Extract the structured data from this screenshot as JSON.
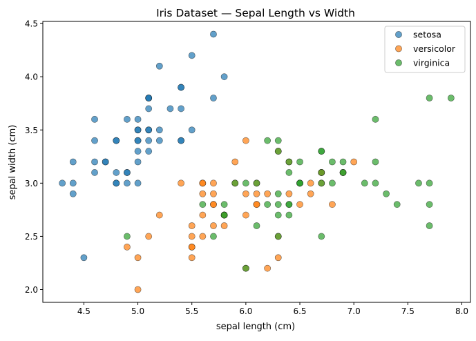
{
  "chart_data": {
    "type": "scatter",
    "title": "Iris Dataset — Sepal Length vs Width",
    "xlabel": "sepal length (cm)",
    "ylabel": "sepal width (cm)",
    "xlim": [
      4.12,
      8.08
    ],
    "ylim": [
      1.88,
      4.52
    ],
    "xticks": [
      4.5,
      5.0,
      5.5,
      6.0,
      6.5,
      7.0,
      7.5,
      8.0
    ],
    "xtick_labels": [
      "4.5",
      "5.0",
      "5.5",
      "6.0",
      "6.5",
      "7.0",
      "7.5",
      "8.0"
    ],
    "yticks": [
      2.0,
      2.5,
      3.0,
      3.5,
      4.0,
      4.5
    ],
    "ytick_labels": [
      "2.0",
      "2.5",
      "3.0",
      "3.5",
      "4.0",
      "4.5"
    ],
    "grid": false,
    "legend_position": "top-right",
    "series": [
      {
        "name": "setosa",
        "color": "#1f77b4",
        "points": [
          [
            5.1,
            3.5
          ],
          [
            4.9,
            3.0
          ],
          [
            4.7,
            3.2
          ],
          [
            4.6,
            3.1
          ],
          [
            5.0,
            3.6
          ],
          [
            5.4,
            3.9
          ],
          [
            4.6,
            3.4
          ],
          [
            5.0,
            3.4
          ],
          [
            4.4,
            2.9
          ],
          [
            4.9,
            3.1
          ],
          [
            5.4,
            3.7
          ],
          [
            4.8,
            3.4
          ],
          [
            4.8,
            3.0
          ],
          [
            4.3,
            3.0
          ],
          [
            5.8,
            4.0
          ],
          [
            5.7,
            4.4
          ],
          [
            5.4,
            3.9
          ],
          [
            5.1,
            3.5
          ],
          [
            5.7,
            3.8
          ],
          [
            5.1,
            3.8
          ],
          [
            5.4,
            3.4
          ],
          [
            5.1,
            3.7
          ],
          [
            4.6,
            3.6
          ],
          [
            5.1,
            3.3
          ],
          [
            4.8,
            3.4
          ],
          [
            5.0,
            3.0
          ],
          [
            5.0,
            3.4
          ],
          [
            5.2,
            3.5
          ],
          [
            5.2,
            3.4
          ],
          [
            4.7,
            3.2
          ],
          [
            4.8,
            3.1
          ],
          [
            5.4,
            3.4
          ],
          [
            5.2,
            4.1
          ],
          [
            5.5,
            4.2
          ],
          [
            4.9,
            3.1
          ],
          [
            5.0,
            3.2
          ],
          [
            5.5,
            3.5
          ],
          [
            4.9,
            3.6
          ],
          [
            4.4,
            3.0
          ],
          [
            5.1,
            3.4
          ],
          [
            5.0,
            3.5
          ],
          [
            4.5,
            2.3
          ],
          [
            4.4,
            3.2
          ],
          [
            5.0,
            3.5
          ],
          [
            5.1,
            3.8
          ],
          [
            4.8,
            3.0
          ],
          [
            5.1,
            3.8
          ],
          [
            4.6,
            3.2
          ],
          [
            5.3,
            3.7
          ],
          [
            5.0,
            3.3
          ]
        ]
      },
      {
        "name": "versicolor",
        "color": "#ff7f0e",
        "points": [
          [
            7.0,
            3.2
          ],
          [
            6.4,
            3.2
          ],
          [
            6.9,
            3.1
          ],
          [
            5.5,
            2.3
          ],
          [
            6.5,
            2.8
          ],
          [
            5.7,
            2.8
          ],
          [
            6.3,
            3.3
          ],
          [
            4.9,
            2.4
          ],
          [
            6.6,
            2.9
          ],
          [
            5.2,
            2.7
          ],
          [
            5.0,
            2.0
          ],
          [
            5.9,
            3.0
          ],
          [
            6.0,
            2.2
          ],
          [
            6.1,
            2.9
          ],
          [
            5.6,
            2.9
          ],
          [
            6.7,
            3.1
          ],
          [
            5.6,
            3.0
          ],
          [
            5.8,
            2.7
          ],
          [
            6.2,
            2.2
          ],
          [
            5.6,
            2.5
          ],
          [
            5.9,
            3.2
          ],
          [
            6.1,
            2.8
          ],
          [
            6.3,
            2.5
          ],
          [
            6.1,
            2.8
          ],
          [
            6.4,
            2.9
          ],
          [
            6.6,
            3.0
          ],
          [
            6.8,
            2.8
          ],
          [
            6.7,
            3.0
          ],
          [
            6.0,
            2.9
          ],
          [
            5.7,
            2.6
          ],
          [
            5.5,
            2.4
          ],
          [
            5.5,
            2.4
          ],
          [
            5.8,
            2.7
          ],
          [
            6.0,
            2.7
          ],
          [
            5.4,
            3.0
          ],
          [
            6.0,
            3.4
          ],
          [
            6.7,
            3.1
          ],
          [
            6.3,
            2.3
          ],
          [
            5.6,
            3.0
          ],
          [
            5.5,
            2.5
          ],
          [
            5.5,
            2.6
          ],
          [
            6.1,
            3.0
          ],
          [
            5.8,
            2.6
          ],
          [
            5.0,
            2.3
          ],
          [
            5.6,
            2.7
          ],
          [
            5.7,
            3.0
          ],
          [
            5.7,
            2.9
          ],
          [
            6.2,
            2.9
          ],
          [
            5.1,
            2.5
          ],
          [
            5.7,
            2.8
          ]
        ]
      },
      {
        "name": "virginica",
        "color": "#2ca02c",
        "points": [
          [
            6.3,
            3.3
          ],
          [
            5.8,
            2.7
          ],
          [
            7.1,
            3.0
          ],
          [
            6.3,
            2.9
          ],
          [
            6.5,
            3.0
          ],
          [
            7.6,
            3.0
          ],
          [
            4.9,
            2.5
          ],
          [
            7.3,
            2.9
          ],
          [
            6.7,
            2.5
          ],
          [
            7.2,
            3.6
          ],
          [
            6.5,
            3.2
          ],
          [
            6.4,
            2.7
          ],
          [
            6.8,
            3.0
          ],
          [
            5.7,
            2.5
          ],
          [
            5.8,
            2.8
          ],
          [
            6.4,
            3.2
          ],
          [
            6.5,
            3.0
          ],
          [
            7.7,
            3.8
          ],
          [
            7.7,
            2.6
          ],
          [
            6.0,
            2.2
          ],
          [
            6.9,
            3.2
          ],
          [
            5.6,
            2.8
          ],
          [
            7.7,
            2.8
          ],
          [
            6.3,
            2.7
          ],
          [
            6.7,
            3.3
          ],
          [
            7.2,
            3.2
          ],
          [
            6.2,
            2.8
          ],
          [
            6.1,
            3.0
          ],
          [
            6.4,
            2.8
          ],
          [
            7.2,
            3.0
          ],
          [
            7.4,
            2.8
          ],
          [
            7.9,
            3.8
          ],
          [
            6.4,
            2.8
          ],
          [
            6.3,
            2.8
          ],
          [
            6.1,
            2.6
          ],
          [
            7.7,
            3.0
          ],
          [
            6.3,
            3.4
          ],
          [
            6.4,
            3.1
          ],
          [
            6.0,
            3.0
          ],
          [
            6.9,
            3.1
          ],
          [
            6.7,
            3.1
          ],
          [
            6.9,
            3.1
          ],
          [
            5.8,
            2.7
          ],
          [
            6.8,
            3.2
          ],
          [
            6.7,
            3.3
          ],
          [
            6.7,
            3.0
          ],
          [
            6.3,
            2.5
          ],
          [
            6.5,
            3.0
          ],
          [
            6.2,
            3.4
          ],
          [
            5.9,
            3.0
          ]
        ]
      }
    ]
  }
}
